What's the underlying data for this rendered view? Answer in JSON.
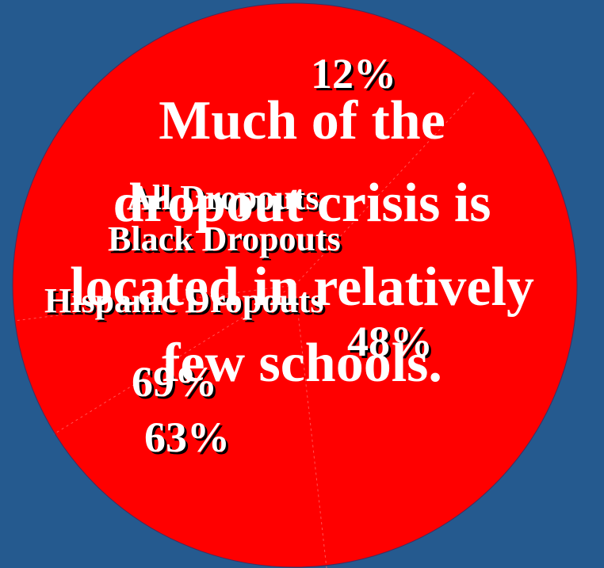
{
  "slide": {
    "title_lines": [
      "Much of the",
      "dropout crisis is",
      "located in relatively",
      "few schools."
    ]
  },
  "labels": {
    "pct_12": "12%",
    "cat_all": "All Dropouts",
    "cat_black": "Black Dropouts",
    "cat_hispanic": "Hispanic Dropouts",
    "pct_48": "48%",
    "pct_69": "69%",
    "pct_63": "63%"
  },
  "colors": {
    "background": "#255a8f",
    "pie_fill": "#ff0000",
    "slice_edge": "#ff6a6a",
    "text": "#ffffff",
    "shadow": "#000000"
  },
  "icons": []
}
